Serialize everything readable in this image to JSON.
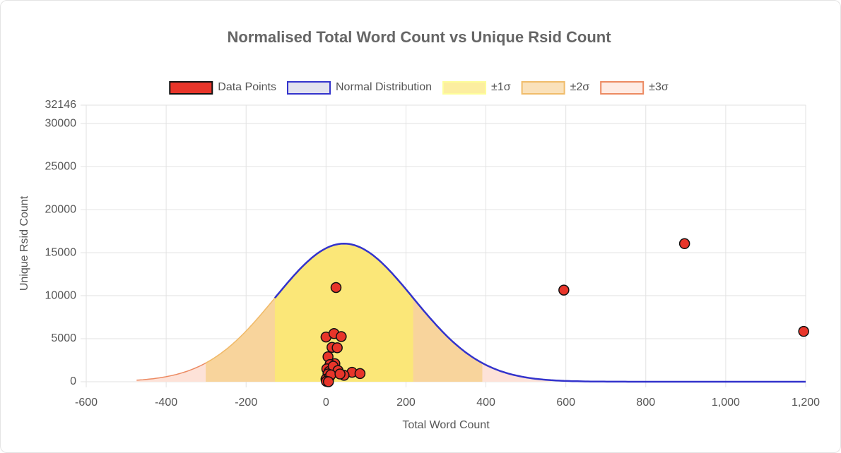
{
  "chart_data": {
    "type": "scatter",
    "title": "Normalised Total Word Count vs Unique Rsid Count",
    "x_label": "Total Word Count",
    "y_label": "Unique Rsid Count",
    "xlim": [
      -600,
      1200
    ],
    "ylim": [
      0,
      32146
    ],
    "xticks": [
      -600,
      -400,
      -200,
      0,
      200,
      400,
      600,
      800,
      {
        "value": 1000,
        "label": "1,000"
      },
      {
        "value": 1200,
        "label": "1,200"
      }
    ],
    "yticks": [
      0,
      5000,
      10000,
      15000,
      20000,
      25000,
      30000,
      32146
    ],
    "grid": true,
    "legend": "top",
    "series": [
      {
        "name": "Data Points",
        "color": "#e8352a",
        "border": "#111111",
        "x": [
          25,
          595,
          897,
          1195,
          0,
          20,
          38,
          15,
          28,
          5,
          22,
          10,
          2,
          8,
          18,
          30,
          65,
          85,
          45,
          5,
          0,
          3,
          8,
          12,
          1,
          35,
          6
        ],
        "values": [
          10950,
          10650,
          16050,
          5850,
          5200,
          5600,
          5250,
          4000,
          3950,
          2900,
          2100,
          2000,
          1500,
          1200,
          1800,
          1300,
          1100,
          950,
          750,
          900,
          300,
          100,
          500,
          800,
          50,
          900,
          0
        ]
      }
    ],
    "distribution": {
      "name": "Normal Distribution",
      "color": "#3333cc",
      "mean": 45,
      "sd": 173,
      "peak": 16050
    },
    "bands": [
      {
        "name": "±1σ",
        "sigma": 1,
        "color": "#fbe778",
        "border": "#fdfd9a"
      },
      {
        "name": "±2σ",
        "sigma": 2,
        "color": "#f8d49c",
        "border": "#f0bc6a"
      },
      {
        "name": "±3σ",
        "sigma": 3,
        "color": "#fde2d8",
        "border": "#ec8a62"
      }
    ]
  }
}
